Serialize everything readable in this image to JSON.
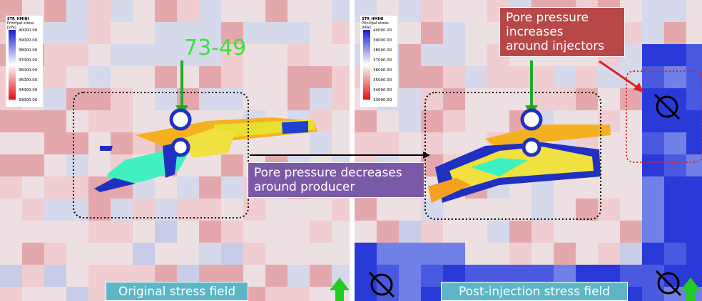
{
  "panels": [
    {
      "legend": {
        "title": "STR_HMINI",
        "subtitle": "Principal stress [kPa]",
        "ticks": [
          "40000.00",
          "39000.00",
          "38000.00",
          "37000.00",
          "36000.00",
          "35000.00",
          "34000.00",
          "33000.00"
        ]
      },
      "caption": "Original stress field"
    },
    {
      "legend": {
        "title": "STR_HMINI",
        "subtitle": "Principal stress [kPa]",
        "ticks": [
          "40000.00",
          "39000.00",
          "38000.00",
          "37000.00",
          "36000.00",
          "35000.00",
          "34000.00",
          "33000.00"
        ]
      },
      "caption": "Post-injection stress field"
    }
  ],
  "annotations": {
    "well": "73-49",
    "injectors": [
      "Pore pressure",
      "increases",
      "around injectors"
    ],
    "producer": [
      "Pore pressure decreases",
      "around producer"
    ]
  }
}
